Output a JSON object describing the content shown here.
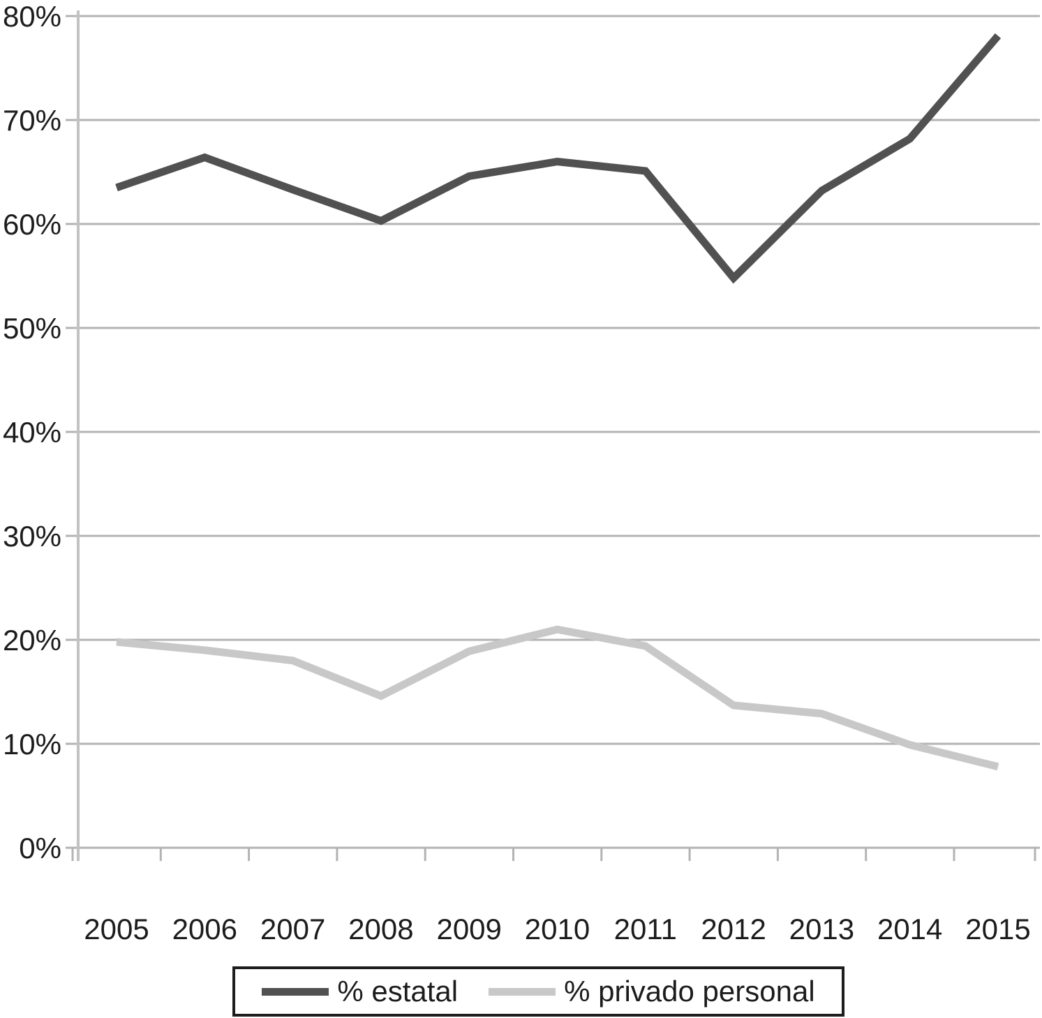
{
  "chart_data": {
    "type": "line",
    "title": "",
    "categories": [
      "2005",
      "2006",
      "2007",
      "2008",
      "2009",
      "2010",
      "2011",
      "2012",
      "2013",
      "2014",
      "2015"
    ],
    "series": [
      {
        "name": "% estatal",
        "color": "#515151",
        "values": [
          63.5,
          66.4,
          63.3,
          60.3,
          64.6,
          66.0,
          65.1,
          54.8,
          63.2,
          68.2,
          78.1
        ]
      },
      {
        "name": "% privado personal",
        "color": "#c8c8c8",
        "values": [
          19.8,
          19.0,
          18.0,
          14.6,
          18.9,
          21.0,
          19.4,
          13.7,
          12.9,
          9.9,
          7.8
        ]
      }
    ],
    "xlabel": "",
    "ylabel": "",
    "ylim": [
      0,
      80
    ],
    "ytick_step": 10,
    "ytick_labels": [
      "0%",
      "10%",
      "20%",
      "30%",
      "40%",
      "50%",
      "60%",
      "70%",
      "80%"
    ],
    "grid": true,
    "legend_position": "bottom-box"
  },
  "colors": {
    "background": "#ffffff",
    "grid": "#b3b3b3",
    "axis": "#c2c2c2",
    "tick": "#b3b3b3",
    "text": "#1c1c1c",
    "legend_border": "#1d1d1d"
  }
}
